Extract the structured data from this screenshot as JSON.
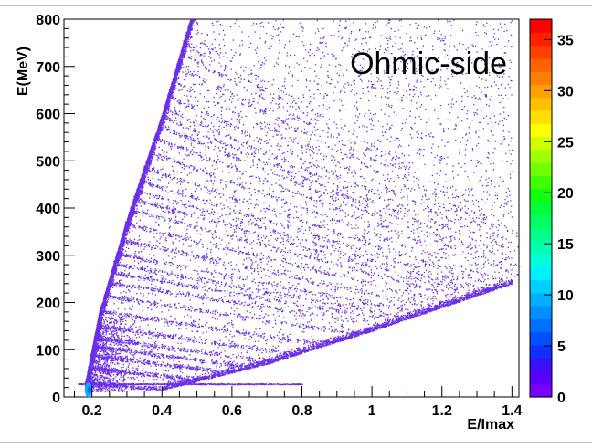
{
  "chart_data": {
    "type": "heatmap",
    "title": "",
    "xlabel": "E/Imax",
    "ylabel": "E(MeV)",
    "xlim": [
      0.12,
      1.42
    ],
    "ylim": [
      0,
      800
    ],
    "x_ticks": [
      "0.2",
      "0.4",
      "0.6",
      "0.8",
      "1",
      "1.2",
      "1.4"
    ],
    "y_ticks": [
      "0",
      "100",
      "200",
      "300",
      "400",
      "500",
      "600",
      "700",
      "800"
    ],
    "annotation": "Ohmic-side",
    "colorbar": {
      "range": [
        0,
        37
      ],
      "ticks": [
        "0",
        "5",
        "10",
        "15",
        "20",
        "25",
        "30",
        "35"
      ]
    },
    "features": {
      "upper_edge": [
        [
          0.18,
          30
        ],
        [
          0.22,
          180
        ],
        [
          0.3,
          380
        ],
        [
          0.4,
          600
        ],
        [
          0.48,
          800
        ]
      ],
      "lower_edge": [
        [
          0.4,
          15
        ],
        [
          0.7,
          70
        ],
        [
          1.0,
          140
        ],
        [
          1.2,
          190
        ],
        [
          1.4,
          240
        ]
      ],
      "band_count": 30,
      "bright_spot": [
        0.19,
        15
      ],
      "bright_spot_value": 12,
      "baseline_y": 28
    },
    "colors": {
      "scatter": "#6a2ee8",
      "palette": [
        "#7a00ff",
        "#5a00ff",
        "#3a10ff",
        "#1030ff",
        "#0050ff",
        "#0070ff",
        "#0090ff",
        "#00b0ff",
        "#00d0ff",
        "#00f0ff",
        "#00ffd8",
        "#00ffb0",
        "#00ff88",
        "#00ff60",
        "#00ff38",
        "#10ff10",
        "#40ff00",
        "#70ff00",
        "#a0ff00",
        "#d0ff00",
        "#ffff00",
        "#ffe000",
        "#ffc000",
        "#ffa000",
        "#ff8000",
        "#ff6000",
        "#ff4000",
        "#ff2000",
        "#ff0000"
      ]
    }
  }
}
